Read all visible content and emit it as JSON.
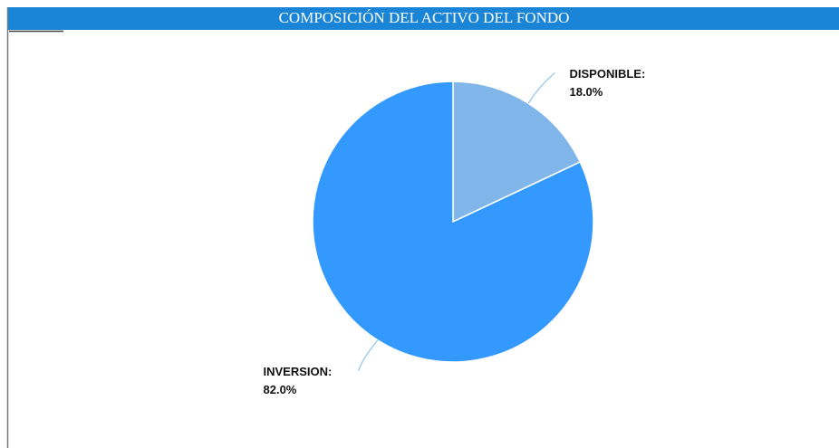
{
  "chart_data": {
    "type": "pie",
    "title": "COMPOSICIÓN DEL ACTIVO DEL FONDO",
    "categories": [
      "DISPONIBLE:",
      "INVERSION:"
    ],
    "values": [
      18.0,
      82.0
    ],
    "value_labels": [
      "18.0%",
      "82.0%"
    ],
    "colors": [
      "#80b6ea",
      "#3399fe"
    ]
  }
}
